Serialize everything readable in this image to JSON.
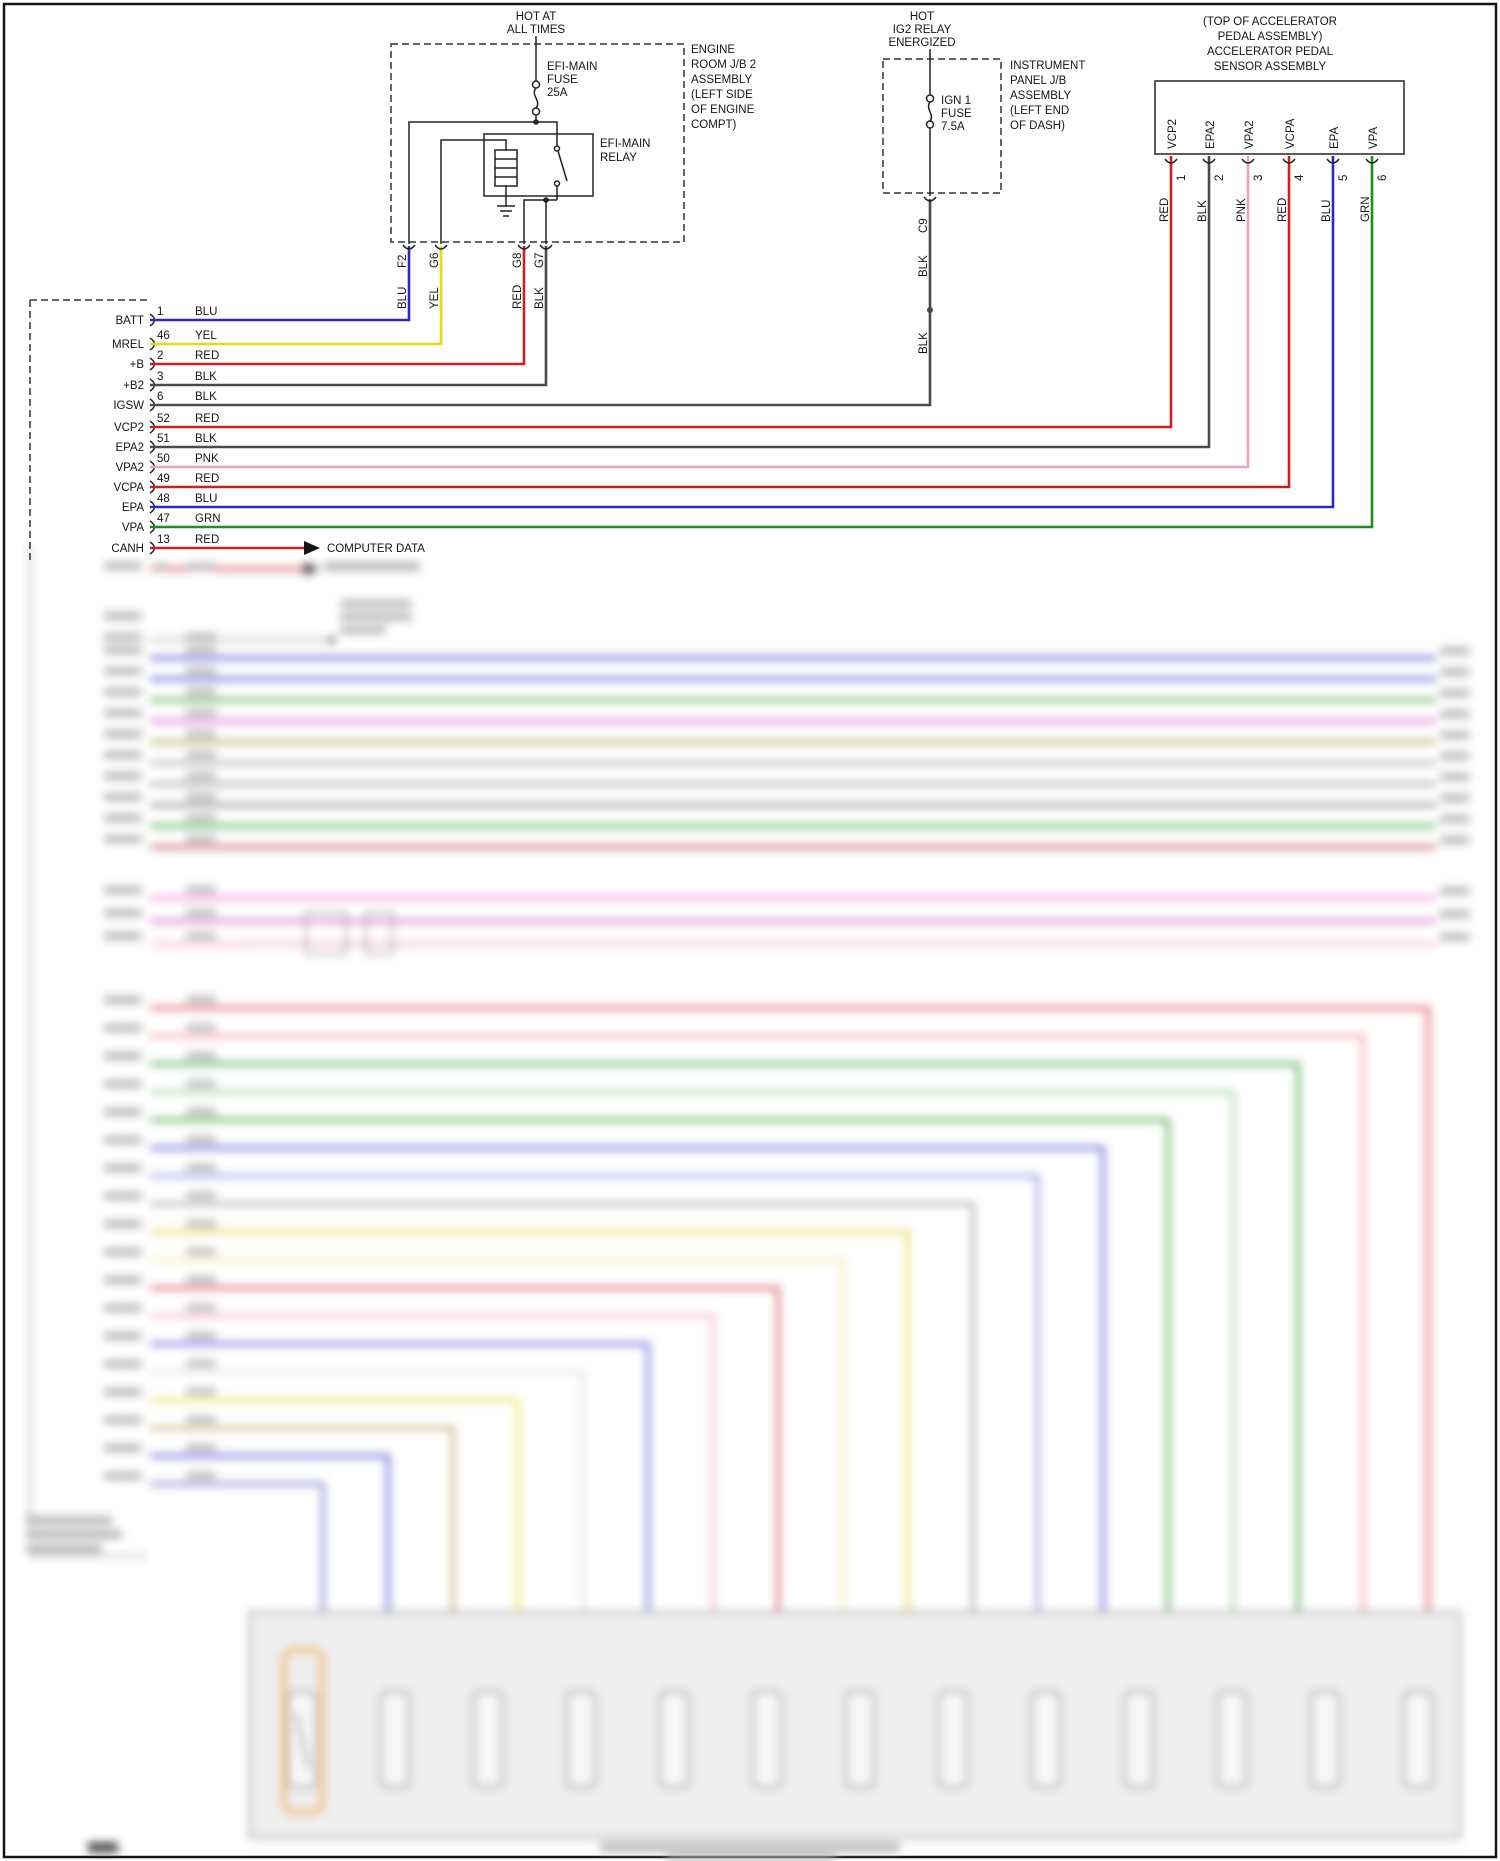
{
  "colors": {
    "BLU": "#2a2ac0",
    "YEL": "#ead818",
    "RED": "#cc2020",
    "BLK": "#4a4a4a",
    "PNK": "#ef9ec5",
    "GRN": "#1e8f1e",
    "line": "#222222",
    "highlight_orange": "#f0a040"
  },
  "top": {
    "engine_jb": {
      "hot_lines": [
        "HOT AT",
        "ALL TIMES"
      ],
      "fuse_lines": [
        "EFI-MAIN",
        "FUSE",
        "25A"
      ],
      "relay_lines": [
        "EFI-MAIN",
        "RELAY"
      ],
      "assembly_lines": [
        "ENGINE",
        "ROOM J/B 2",
        "ASSEMBLY",
        "(LEFT SIDE",
        "OF ENGINE",
        "COMPT)"
      ],
      "connectors": [
        {
          "id": "F2",
          "color": "BLU"
        },
        {
          "id": "G6",
          "color": "YEL"
        },
        {
          "id": "G8",
          "color": "RED"
        },
        {
          "id": "G7",
          "color": "BLK"
        }
      ]
    },
    "instrument_jb": {
      "hot_lines": [
        "HOT",
        "IG2 RELAY",
        "ENERGIZED"
      ],
      "fuse_lines": [
        "IGN 1",
        "FUSE",
        "7.5A"
      ],
      "assembly_lines": [
        "INSTRUMENT",
        "PANEL J/B",
        "ASSEMBLY",
        "(LEFT END",
        "OF DASH)"
      ],
      "connector": {
        "id": "C9",
        "color_above": "BLK",
        "color_below": "BLK"
      }
    },
    "pedal_sensor": {
      "title_lines": [
        "(TOP OF ACCELERATOR",
        "PEDAL ASSEMBLY)",
        "ACCELERATOR PEDAL",
        "SENSOR ASSEMBLY"
      ],
      "pins": [
        {
          "name": "VCP2",
          "num": "1",
          "color": "RED"
        },
        {
          "name": "EPA2",
          "num": "2",
          "color": "BLK"
        },
        {
          "name": "VPA2",
          "num": "3",
          "color": "PNK"
        },
        {
          "name": "VCPA",
          "num": "4",
          "color": "RED"
        },
        {
          "name": "EPA",
          "num": "5",
          "color": "BLU"
        },
        {
          "name": "VPA",
          "num": "6",
          "color": "GRN"
        }
      ]
    }
  },
  "ecm": {
    "pins": [
      {
        "name": "BATT",
        "num": "1",
        "color": "BLU"
      },
      {
        "name": "MREL",
        "num": "46",
        "color": "YEL"
      },
      {
        "name": "+B",
        "num": "2",
        "color": "RED"
      },
      {
        "name": "+B2",
        "num": "3",
        "color": "BLK"
      },
      {
        "name": "IGSW",
        "num": "6",
        "color": "BLK"
      },
      {
        "name": "VCP2",
        "num": "52",
        "color": "RED"
      },
      {
        "name": "EPA2",
        "num": "51",
        "color": "BLK"
      },
      {
        "name": "VPA2",
        "num": "50",
        "color": "PNK"
      },
      {
        "name": "VCPA",
        "num": "49",
        "color": "RED"
      },
      {
        "name": "EPA",
        "num": "48",
        "color": "BLU"
      },
      {
        "name": "VPA",
        "num": "47",
        "color": "GRN"
      },
      {
        "name": "CANH",
        "num": "13",
        "color": "RED",
        "note": "COMPUTER DATA"
      }
    ]
  },
  "blurred_section": {
    "canl_wire_color": "#cc2020",
    "bus_wire_colors": [
      "#3a3acd",
      "#3a3acd",
      "#2f9a2f",
      "#cc55cc",
      "#9a9a33",
      "#9a9a9a",
      "#8a8a8a",
      "#6f6f6f",
      "#2f9a2f",
      "#b04040"
    ],
    "pink_wire_colors": [
      "#e878c8",
      "#cc55cc",
      "#f2a8c4"
    ],
    "stair_wire_colors": [
      "#dd4444",
      "#ee9090",
      "#2f9a2f",
      "#8fcf8f",
      "#2f9a2f",
      "#4444cc",
      "#8888dd",
      "#9a9a9a",
      "#e0d040",
      "#efe8a0",
      "#cc4444",
      "#f0a8c0",
      "#5555cc",
      "#dddddd",
      "#e8e040",
      "#c0a060",
      "#4444cc",
      "#7070c0"
    ]
  }
}
